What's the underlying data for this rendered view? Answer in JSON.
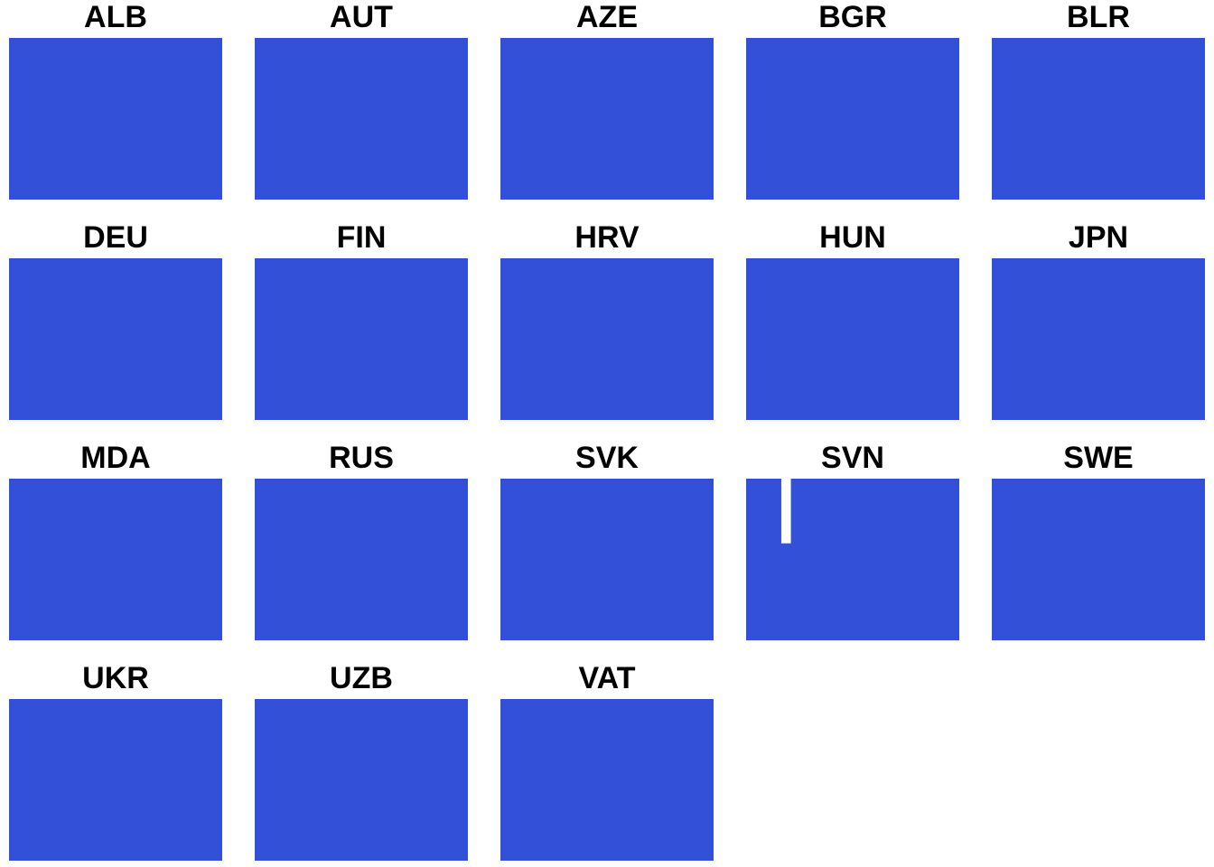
{
  "chart_data": {
    "type": "area",
    "layout": "small-multiples",
    "fill_color": "#3350d8",
    "grid": false,
    "axes_visible": false,
    "panels": [
      {
        "title": "ALB",
        "gaps": []
      },
      {
        "title": "AUT",
        "gaps": []
      },
      {
        "title": "AZE",
        "gaps": []
      },
      {
        "title": "BGR",
        "gaps": []
      },
      {
        "title": "BLR",
        "gaps": []
      },
      {
        "title": "DEU",
        "gaps": []
      },
      {
        "title": "FIN",
        "gaps": []
      },
      {
        "title": "HRV",
        "gaps": []
      },
      {
        "title": "HUN",
        "gaps": []
      },
      {
        "title": "JPN",
        "gaps": []
      },
      {
        "title": "MDA",
        "gaps": []
      },
      {
        "title": "RUS",
        "gaps": []
      },
      {
        "title": "SVK",
        "gaps": []
      },
      {
        "title": "SVN",
        "gaps": [
          {
            "x_start": 0.165,
            "x_end": 0.21,
            "y_from": 0.6,
            "y_to": 1.0
          }
        ]
      },
      {
        "title": "SWE",
        "gaps": []
      },
      {
        "title": "UKR",
        "gaps": []
      },
      {
        "title": "UZB",
        "gaps": []
      },
      {
        "title": "VAT",
        "gaps": []
      }
    ]
  }
}
